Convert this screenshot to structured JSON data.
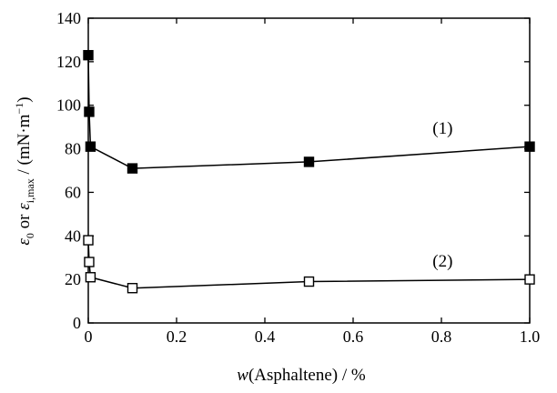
{
  "chart_data": {
    "type": "line",
    "xlabel": {
      "var": "w",
      "rest": "(Asphaltene) / %"
    },
    "ylabel": {
      "sym1": "ε",
      "sub1": "0",
      "mid": " or ",
      "sym2": "ε",
      "sub2": "i,max",
      "unit": " / (mN·m",
      "sup": "−1",
      "close": ")"
    },
    "xlim": [
      0,
      1.0
    ],
    "ylim": [
      0,
      140
    ],
    "xticks": [
      0,
      0.2,
      0.4,
      0.6,
      0.8,
      1.0
    ],
    "xtick_labels": [
      "0",
      "0.2",
      "0.4",
      "0.6",
      "0.8",
      "1.0"
    ],
    "yticks": [
      0,
      20,
      40,
      60,
      80,
      100,
      120,
      140
    ],
    "ytick_labels": [
      "0",
      "20",
      "40",
      "60",
      "80",
      "100",
      "120",
      "140"
    ],
    "grid": false,
    "series": [
      {
        "name": "(1)",
        "marker": "filled-square",
        "color": "#000000",
        "points": [
          {
            "x": 0.0,
            "y": 123
          },
          {
            "x": 0.002,
            "y": 97
          },
          {
            "x": 0.005,
            "y": 81
          },
          {
            "x": 0.1,
            "y": 71
          },
          {
            "x": 0.5,
            "y": 74
          },
          {
            "x": 1.0,
            "y": 81
          }
        ]
      },
      {
        "name": "(2)",
        "marker": "open-square",
        "color": "#000000",
        "points": [
          {
            "x": 0.0,
            "y": 38
          },
          {
            "x": 0.002,
            "y": 28
          },
          {
            "x": 0.005,
            "y": 21
          },
          {
            "x": 0.1,
            "y": 16
          },
          {
            "x": 0.5,
            "y": 19
          },
          {
            "x": 1.0,
            "y": 20
          }
        ]
      }
    ],
    "annotations": [
      {
        "series_index": 0,
        "text": "(1)",
        "x": 0.78,
        "y": 87
      },
      {
        "series_index": 1,
        "text": "(2)",
        "x": 0.78,
        "y": 26
      }
    ]
  }
}
